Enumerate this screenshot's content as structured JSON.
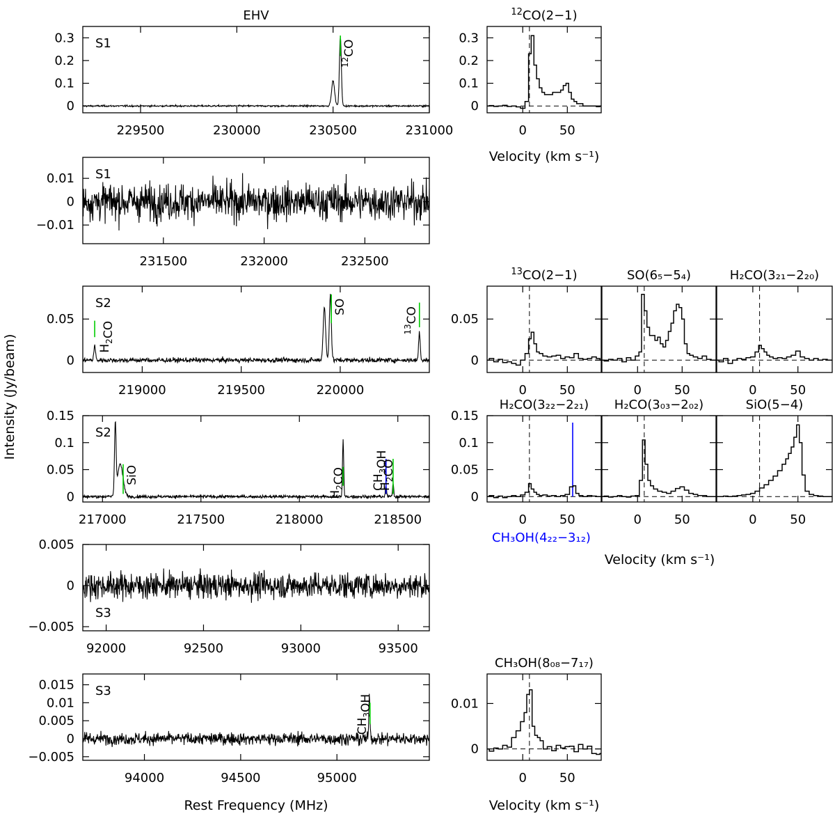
{
  "figure": {
    "global_ylabel": "Intensity (Jy/beam)",
    "global_xlabel": "Rest Frequency (MHz)",
    "velocity_label": "Velocity (km s⁻¹)"
  },
  "colors": {
    "line_marker": "#00cc00",
    "methanol_marker": "#0000ff",
    "trace": "#000000"
  },
  "chart_data": [
    {
      "id": "spec-s1-a",
      "type": "line",
      "title": "EHV",
      "source_label": "S1",
      "xlim": [
        229200,
        231000
      ],
      "ylim": [
        -0.03,
        0.35
      ],
      "yticks": [
        0,
        0.1,
        0.2,
        0.3
      ],
      "ytick_labels": [
        "0",
        "0.1",
        "0.2",
        "0.3"
      ],
      "xticks": [
        229500,
        230000,
        230500,
        231000
      ],
      "xtick_labels": [
        "229500",
        "230000",
        "230500",
        "231000"
      ],
      "noise": 0.0025,
      "features": [
        [
          230500,
          0.11,
          8
        ],
        [
          230538,
          0.31,
          5
        ]
      ],
      "markers": [
        {
          "x": 230538,
          "y0": 0.22,
          "y1": 0.31,
          "color": "green",
          "label": "12CO"
        }
      ]
    },
    {
      "id": "spec-s1-b",
      "type": "line",
      "source_label": "S1",
      "xlim": [
        231100,
        232820
      ],
      "ylim": [
        -0.018,
        0.019
      ],
      "yticks": [
        -0.01,
        0,
        0.01
      ],
      "ytick_labels": [
        "−0.01",
        "0",
        "0.01"
      ],
      "xticks": [
        231500,
        232000,
        232500
      ],
      "xtick_labels": [
        "231500",
        "232000",
        "232500"
      ],
      "noise": 0.0055,
      "features": [],
      "markers": []
    },
    {
      "id": "spec-s2-a",
      "type": "line",
      "source_label": "S2",
      "xlim": [
        218700,
        220450
      ],
      "ylim": [
        -0.015,
        0.09
      ],
      "yticks": [
        0,
        0.05
      ],
      "ytick_labels": [
        "0",
        "0.05"
      ],
      "xticks": [
        219000,
        219500,
        220000
      ],
      "xtick_labels": [
        "219000",
        "219500",
        "220000"
      ],
      "noise": 0.002,
      "features": [
        [
          218760,
          0.018,
          4
        ],
        [
          219920,
          0.065,
          6
        ],
        [
          219950,
          0.08,
          5
        ],
        [
          220400,
          0.035,
          4
        ]
      ],
      "markers": [
        {
          "x": 218760,
          "y0": 0.028,
          "y1": 0.048,
          "color": "green",
          "label": "H2CO"
        },
        {
          "x": 219955,
          "y0": 0.045,
          "y1": 0.08,
          "color": "green",
          "label": "SO"
        },
        {
          "x": 220400,
          "y0": 0.04,
          "y1": 0.07,
          "color": "green",
          "label": "13CO"
        }
      ]
    },
    {
      "id": "spec-s2-b",
      "type": "line",
      "source_label": "S2",
      "xlim": [
        216900,
        218660
      ],
      "ylim": [
        -0.01,
        0.15
      ],
      "yticks": [
        0,
        0.05,
        0.1,
        0.15
      ],
      "ytick_labels": [
        "0",
        "0.05",
        "0.1",
        "0.15"
      ],
      "xticks": [
        217000,
        217500,
        218000,
        218500
      ],
      "xtick_labels": [
        "217000",
        "217500",
        "218000",
        "218500"
      ],
      "noise": 0.002,
      "features": [
        [
          217065,
          0.13,
          4
        ],
        [
          217090,
          0.06,
          14
        ],
        [
          218222,
          0.105,
          3
        ],
        [
          218440,
          0.02,
          3
        ],
        [
          218476,
          0.025,
          3
        ]
      ],
      "markers": [
        {
          "x": 217105,
          "y0": 0.005,
          "y1": 0.06,
          "color": "green",
          "label": "SiO"
        },
        {
          "x": 218222,
          "y0": 0.02,
          "y1": 0.055,
          "color": "green",
          "label": "H2CO"
        },
        {
          "x": 218440,
          "y0": 0.005,
          "y1": 0.07,
          "color": "blue",
          "label": "CH3OH"
        },
        {
          "x": 218476,
          "y0": 0.005,
          "y1": 0.07,
          "color": "green",
          "label": "H2CO"
        }
      ]
    },
    {
      "id": "spec-s3-a",
      "type": "line",
      "source_label": "S3",
      "xlim": [
        91880,
        93660
      ],
      "ylim": [
        -0.0055,
        0.005
      ],
      "yticks": [
        -0.005,
        0,
        0.005
      ],
      "ytick_labels": [
        "−0.005",
        "0",
        "0.005"
      ],
      "xticks": [
        92000,
        92500,
        93000,
        93500
      ],
      "xtick_labels": [
        "92000",
        "92500",
        "93000",
        "93500"
      ],
      "noise": 0.0011,
      "features": [],
      "markers": []
    },
    {
      "id": "spec-s3-b",
      "type": "line",
      "source_label": "S3",
      "xlim": [
        93680,
        95480
      ],
      "ylim": [
        -0.006,
        0.018
      ],
      "yticks": [
        -0.005,
        0,
        0.005,
        0.01,
        0.015
      ],
      "ytick_labels": [
        "−0.005",
        "0",
        "0.005",
        "0.01",
        "0.015"
      ],
      "xticks": [
        94000,
        94500,
        95000
      ],
      "xtick_labels": [
        "94000",
        "94500",
        "95000"
      ],
      "noise": 0.0012,
      "features": [
        [
          95169,
          0.012,
          3
        ]
      ],
      "markers": [
        {
          "x": 95172,
          "y0": 0.004,
          "y1": 0.01,
          "color": "green",
          "label": "CH3OH"
        }
      ]
    },
    {
      "id": "vel-12co",
      "type": "line",
      "title": "12CO(2−1)",
      "xlim": [
        -40,
        88
      ],
      "ylim": [
        -0.03,
        0.35
      ],
      "yticks": [
        0,
        0.1,
        0.2,
        0.3
      ],
      "ytick_labels": [
        "0",
        "0.1",
        "0.2",
        "0.3"
      ],
      "xticks": [
        0,
        50
      ],
      "xtick_labels": [
        "0",
        "50"
      ],
      "vline": 7.5,
      "v": [
        -40,
        -35,
        -30,
        -25,
        -20,
        -15,
        -10,
        -5,
        0,
        5,
        8,
        11,
        14,
        17,
        20,
        23,
        26,
        29,
        32,
        35,
        38,
        41,
        44,
        47,
        50,
        53,
        56,
        59,
        62,
        65,
        70,
        75,
        80,
        85,
        88
      ],
      "y": [
        0.0,
        0.002,
        -0.002,
        0.0,
        0.003,
        -0.002,
        0.0,
        -0.004,
        -0.01,
        0.02,
        0.23,
        0.31,
        0.18,
        0.12,
        0.08,
        0.06,
        0.05,
        0.05,
        0.05,
        0.06,
        0.06,
        0.06,
        0.07,
        0.09,
        0.1,
        0.06,
        0.03,
        0.02,
        0.01,
        0.01,
        0.0,
        0.0,
        0.0,
        -0.003,
        0.0
      ]
    },
    {
      "id": "vel-13co",
      "type": "line",
      "title": "13CO(2−1)",
      "xlim": [
        -40,
        88
      ],
      "ylim": [
        -0.015,
        0.09
      ],
      "yticks": [
        0,
        0.05
      ],
      "ytick_labels": [
        "0",
        "0.05"
      ],
      "xticks": [
        0,
        50
      ],
      "xtick_labels": [
        "0",
        "50"
      ],
      "vline": 7.5,
      "v": [
        -40,
        -35,
        -30,
        -25,
        -20,
        -15,
        -10,
        -5,
        0,
        5,
        8,
        11,
        14,
        17,
        20,
        25,
        30,
        35,
        40,
        45,
        50,
        55,
        60,
        65,
        70,
        75,
        80,
        85,
        88
      ],
      "y": [
        0.0,
        0.002,
        -0.002,
        0.001,
        -0.003,
        -0.002,
        -0.004,
        -0.006,
        0.0,
        0.008,
        0.026,
        0.034,
        0.02,
        0.01,
        0.008,
        0.005,
        0.004,
        0.005,
        0.006,
        0.002,
        0.004,
        0.003,
        0.008,
        0.002,
        0.001,
        0.002,
        0.004,
        0.002,
        0.0
      ]
    },
    {
      "id": "vel-so",
      "type": "line",
      "title": "SO(6₅−5₄)",
      "xlim": [
        -40,
        88
      ],
      "ylim": [
        -0.015,
        0.09
      ],
      "yticks": [
        0,
        0.05
      ],
      "ytick_labels": [
        "0",
        "0.05"
      ],
      "xticks": [
        0,
        50
      ],
      "xtick_labels": [
        "0",
        "50"
      ],
      "vline": 7.5,
      "v": [
        -40,
        -35,
        -30,
        -25,
        -20,
        -15,
        -10,
        -5,
        0,
        3,
        6,
        9,
        12,
        15,
        18,
        21,
        24,
        27,
        30,
        33,
        36,
        39,
        42,
        45,
        48,
        51,
        54,
        57,
        60,
        65,
        70,
        75,
        80,
        85,
        88
      ],
      "y": [
        0.0,
        -0.001,
        0.001,
        0.0,
        0.002,
        -0.002,
        0.003,
        0.0,
        0.005,
        0.01,
        0.08,
        0.06,
        0.04,
        0.03,
        0.03,
        0.024,
        0.028,
        0.02,
        0.016,
        0.024,
        0.035,
        0.045,
        0.06,
        0.068,
        0.064,
        0.05,
        0.02,
        0.008,
        0.006,
        0.004,
        0.002,
        0.005,
        0.001,
        0.0,
        0.0
      ]
    },
    {
      "id": "vel-h2co-321",
      "type": "line",
      "title": "H₂CO(3₂₁−2₂₀)",
      "xlim": [
        -40,
        88
      ],
      "ylim": [
        -0.015,
        0.09
      ],
      "yticks": [
        0,
        0.05
      ],
      "ytick_labels": [
        "0",
        "0.05"
      ],
      "xticks": [
        0,
        50
      ],
      "xtick_labels": [
        "0",
        "50"
      ],
      "vline": 7.5,
      "v": [
        -40,
        -35,
        -30,
        -25,
        -20,
        -15,
        -10,
        -5,
        0,
        5,
        8,
        11,
        14,
        17,
        20,
        25,
        30,
        35,
        40,
        45,
        50,
        55,
        60,
        65,
        70,
        75,
        80,
        85,
        88
      ],
      "y": [
        0.0,
        -0.002,
        0.002,
        -0.004,
        0.0,
        0.002,
        0.001,
        0.003,
        0.004,
        0.01,
        0.018,
        0.014,
        0.01,
        0.006,
        0.004,
        0.002,
        0.003,
        0.002,
        0.004,
        0.006,
        0.011,
        0.004,
        0.002,
        0.0,
        0.002,
        0.0,
        0.001,
        0.0,
        0.0
      ]
    },
    {
      "id": "vel-h2co-322",
      "type": "line",
      "title": "H₂CO(3₂₂−2₂₁)",
      "bottom_label": "CH₃OH(4₂₂−3₁₂)",
      "xlim": [
        -40,
        88
      ],
      "ylim": [
        -0.01,
        0.15
      ],
      "yticks": [
        0,
        0.05,
        0.1,
        0.15
      ],
      "ytick_labels": [
        "0",
        "0.05",
        "0.1",
        "0.15"
      ],
      "xticks": [
        0,
        50
      ],
      "xtick_labels": [
        "0",
        "50"
      ],
      "vline": 7.5,
      "blue_line": 56,
      "v": [
        -40,
        -35,
        -30,
        -25,
        -20,
        -15,
        -10,
        -5,
        0,
        5,
        8,
        11,
        14,
        17,
        20,
        25,
        30,
        35,
        40,
        45,
        50,
        55,
        58,
        61,
        65,
        70,
        75,
        80,
        85,
        88
      ],
      "y": [
        0.0,
        0.002,
        -0.002,
        0.001,
        -0.002,
        0.0,
        0.002,
        0.0,
        0.003,
        0.008,
        0.024,
        0.014,
        0.008,
        0.004,
        0.002,
        0.003,
        0.001,
        0.002,
        0.0,
        0.002,
        0.004,
        0.018,
        0.02,
        0.006,
        0.002,
        0.0,
        0.002,
        0.001,
        0.0,
        0.0
      ]
    },
    {
      "id": "vel-h2co-303",
      "type": "line",
      "title": "H₂CO(3₀₃−2₀₂)",
      "xlim": [
        -40,
        88
      ],
      "ylim": [
        -0.01,
        0.15
      ],
      "yticks": [
        0,
        0.05,
        0.1,
        0.15
      ],
      "ytick_labels": [
        "0",
        "0.05",
        "0.1",
        "0.15"
      ],
      "xticks": [
        0,
        50
      ],
      "xtick_labels": [
        "0",
        "50"
      ],
      "vline": 7.5,
      "v": [
        -40,
        -35,
        -30,
        -25,
        -20,
        -15,
        -10,
        -5,
        0,
        4,
        7,
        10,
        13,
        16,
        20,
        25,
        30,
        35,
        40,
        45,
        50,
        55,
        60,
        65,
        70,
        75,
        80,
        85,
        88
      ],
      "y": [
        0.0,
        0.001,
        -0.001,
        0.0,
        0.002,
        0.0,
        -0.001,
        0.001,
        0.002,
        0.03,
        0.105,
        0.06,
        0.03,
        0.02,
        0.014,
        0.01,
        0.008,
        0.006,
        0.01,
        0.015,
        0.018,
        0.012,
        0.006,
        0.004,
        0.002,
        0.002,
        0.0,
        0.0,
        0.0
      ]
    },
    {
      "id": "vel-sio",
      "type": "line",
      "title": "SiO(5−4)",
      "xlim": [
        -40,
        88
      ],
      "ylim": [
        -0.01,
        0.15
      ],
      "yticks": [
        0,
        0.05,
        0.1,
        0.15
      ],
      "ytick_labels": [
        "0",
        "0.05",
        "0.1",
        "0.15"
      ],
      "xticks": [
        0,
        50
      ],
      "xtick_labels": [
        "0",
        "50"
      ],
      "vline": 7.5,
      "v": [
        -40,
        -35,
        -30,
        -25,
        -20,
        -15,
        -10,
        -5,
        0,
        5,
        10,
        15,
        20,
        25,
        30,
        35,
        38,
        41,
        44,
        47,
        50,
        53,
        56,
        60,
        65,
        70,
        75,
        80,
        85,
        88
      ],
      "y": [
        0.0,
        0.0,
        0.001,
        0.0,
        0.001,
        0.002,
        0.003,
        0.004,
        0.006,
        0.01,
        0.016,
        0.022,
        0.03,
        0.038,
        0.048,
        0.06,
        0.07,
        0.08,
        0.092,
        0.11,
        0.133,
        0.1,
        0.04,
        0.01,
        0.004,
        0.002,
        0.001,
        0.0,
        0.0,
        0.0
      ]
    },
    {
      "id": "vel-ch3oh-808",
      "type": "line",
      "title": "CH₃OH(8₀₈−7₁₇)",
      "xlim": [
        -40,
        88
      ],
      "ylim": [
        -0.0025,
        0.0165
      ],
      "yticks": [
        0,
        0.01
      ],
      "ytick_labels": [
        "0",
        "0.01"
      ],
      "xticks": [
        0,
        50
      ],
      "xtick_labels": [
        "0",
        "50"
      ],
      "vline": 7.5,
      "v": [
        -40,
        -35,
        -30,
        -25,
        -20,
        -15,
        -10,
        -5,
        0,
        3,
        6,
        9,
        12,
        15,
        18,
        21,
        25,
        30,
        35,
        40,
        45,
        50,
        55,
        60,
        65,
        70,
        75,
        80,
        85,
        88
      ],
      "y": [
        0.0,
        -0.0005,
        0.0002,
        0.0,
        0.0008,
        0.0004,
        0.0025,
        0.004,
        0.006,
        0.008,
        0.012,
        0.013,
        0.005,
        0.003,
        0.0025,
        0.0018,
        0.0,
        0.0005,
        -0.0004,
        0.0008,
        0.0002,
        0.0005,
        0.0006,
        -0.0006,
        0.001,
        0.0,
        0.0006,
        -0.001,
        -0.0012,
        -0.001
      ]
    }
  ]
}
